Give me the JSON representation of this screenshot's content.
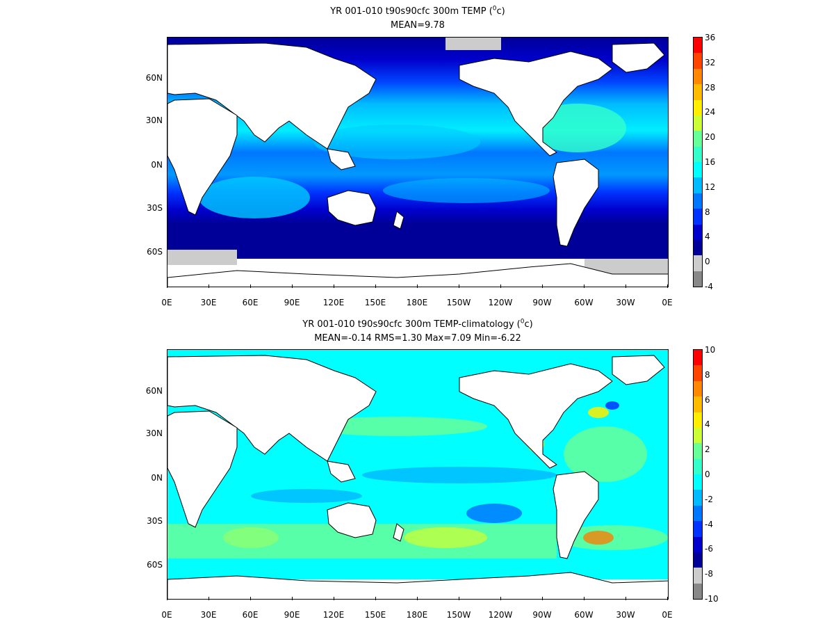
{
  "panels": [
    {
      "title": "YR 001-010 t90s90cfc 300m TEMP (",
      "unit_sup": "0",
      "unit_tail": "c)",
      "stats": "MEAN=9.78",
      "lat_labels": [
        "60N",
        "30N",
        "0N",
        "30S",
        "60S"
      ],
      "lon_labels": [
        "0E",
        "30E",
        "60E",
        "90E",
        "120E",
        "150E",
        "180E",
        "150W",
        "120W",
        "90W",
        "60W",
        "30W",
        "0E"
      ],
      "colorbar": {
        "labels": [
          "36",
          "32",
          "28",
          "24",
          "20",
          "16",
          "12",
          "8",
          "4",
          "0",
          "-4"
        ],
        "colors": [
          "#ff0000",
          "#ff4400",
          "#ff8800",
          "#ffbb00",
          "#ffee00",
          "#ccff33",
          "#66ff99",
          "#33ffcc",
          "#00ffff",
          "#00bbff",
          "#0077ff",
          "#0033ff",
          "#0000cc",
          "#000099",
          "#cccccc",
          "#888888"
        ]
      }
    },
    {
      "title": "YR 001-010 t90s90cfc 300m TEMP-climatology (",
      "unit_sup": "0",
      "unit_tail": "c)",
      "stats": "MEAN=-0.14   RMS=1.30   Max=7.09   Min=-6.22",
      "lat_labels": [
        "60N",
        "30N",
        "0N",
        "30S",
        "60S"
      ],
      "lon_labels": [
        "0E",
        "30E",
        "60E",
        "90E",
        "120E",
        "150E",
        "180E",
        "150W",
        "120W",
        "90W",
        "60W",
        "30W",
        "0E"
      ],
      "colorbar": {
        "labels": [
          "10",
          "8",
          "6",
          "4",
          "2",
          "0",
          "-2",
          "-4",
          "-6",
          "-8",
          "-10"
        ],
        "colors": [
          "#ff0000",
          "#ff4400",
          "#ff8800",
          "#ffbb00",
          "#ffee00",
          "#ccff33",
          "#66ff99",
          "#33ffcc",
          "#00ffff",
          "#00bbff",
          "#0077ff",
          "#0033ff",
          "#0000cc",
          "#000099",
          "#cccccc",
          "#888888"
        ]
      }
    }
  ]
}
